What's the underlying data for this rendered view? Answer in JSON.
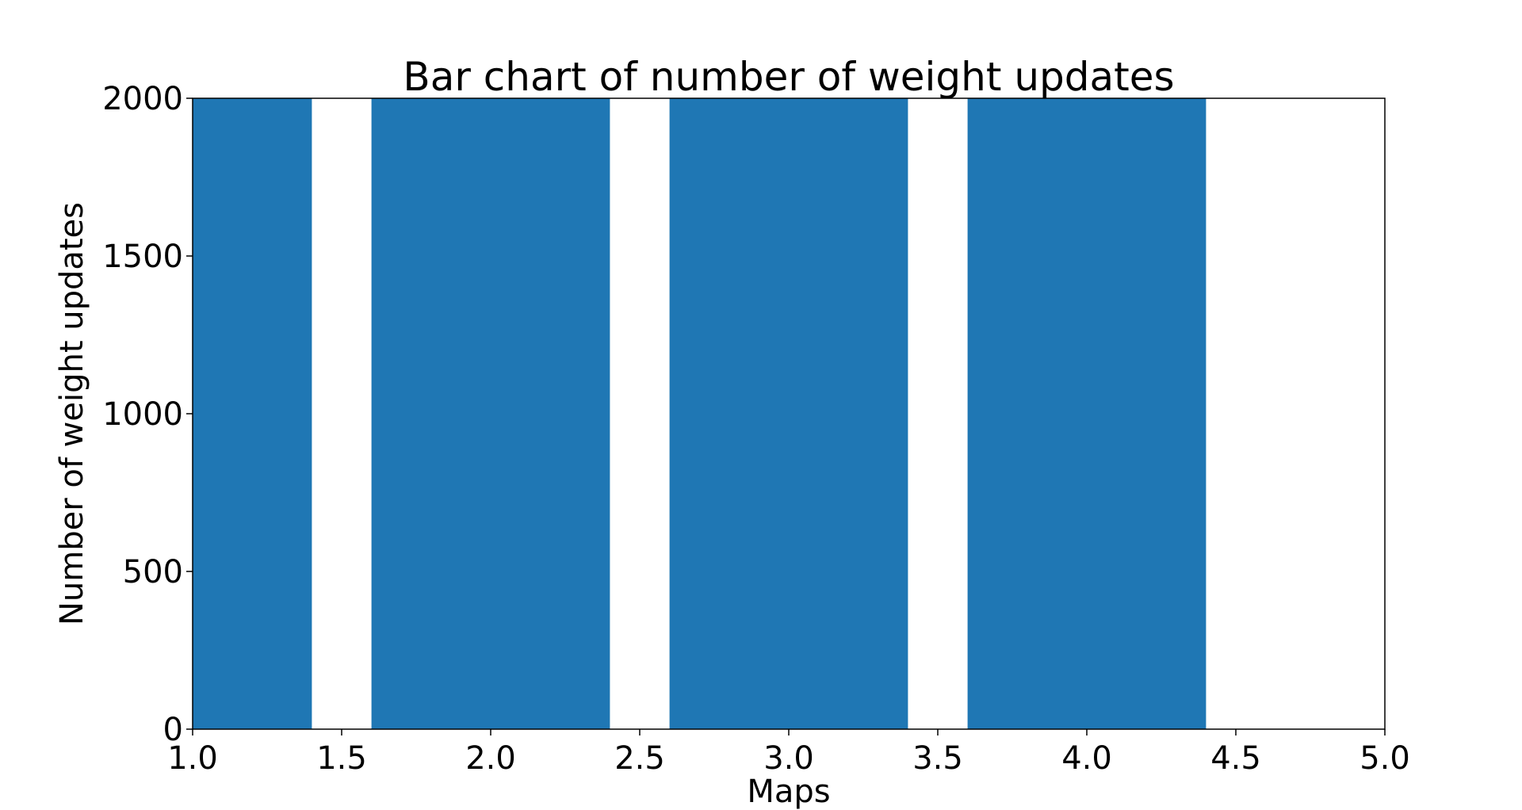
{
  "chart_data": {
    "type": "bar",
    "title": "Bar chart of number of weight updates",
    "xlabel": "Maps",
    "ylabel": "Number of weight updates",
    "x": [
      1,
      2,
      3,
      4
    ],
    "values": [
      2000,
      2000,
      2000,
      2000
    ],
    "bar_width": 0.8,
    "xlim": [
      1.0,
      5.0
    ],
    "ylim": [
      0,
      2000
    ],
    "xticks": [
      "1.0",
      "1.5",
      "2.0",
      "2.5",
      "3.0",
      "3.5",
      "4.0",
      "4.5",
      "5.0"
    ],
    "yticks": [
      "0",
      "500",
      "1000",
      "1500",
      "2000"
    ],
    "grid": false,
    "legend": "none",
    "bar_color": "#1f77b4"
  }
}
